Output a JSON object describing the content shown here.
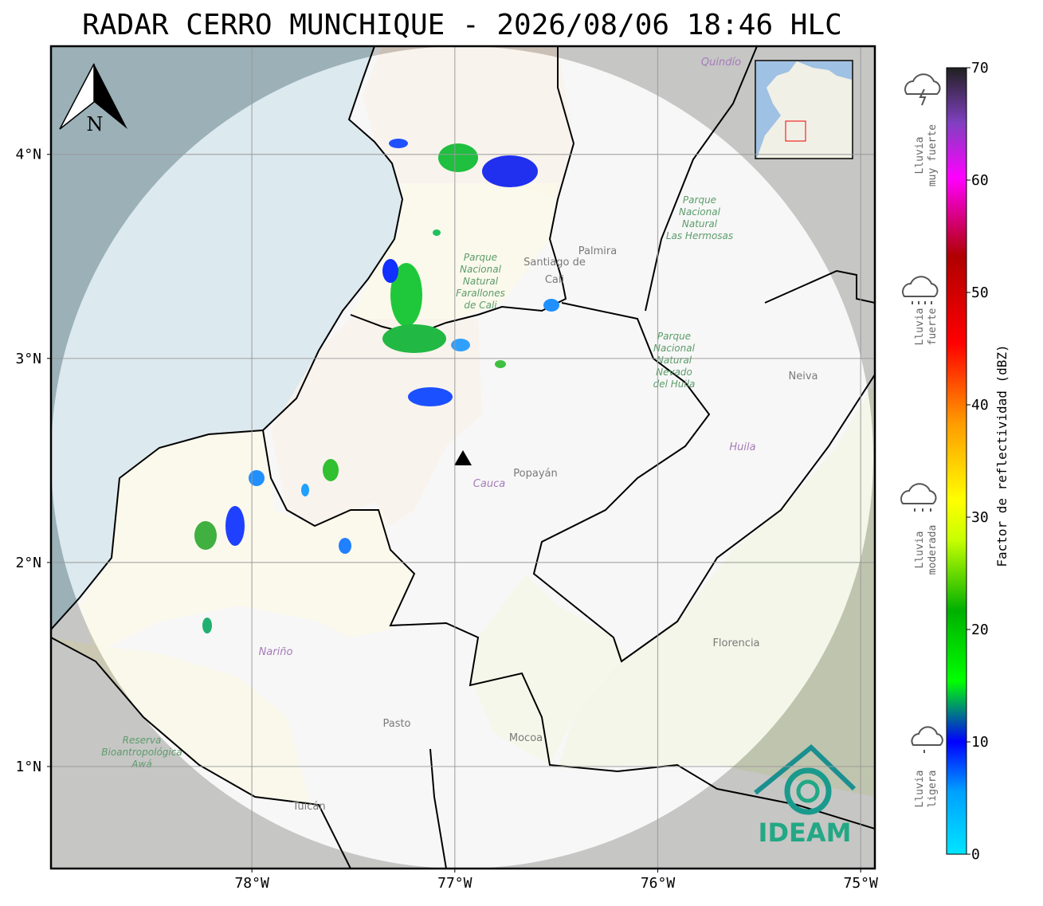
{
  "title": "RADAR CERRO MUNCHIQUE - 2026/08/06 18:46 HLC",
  "map": {
    "xlim": [
      -78.99,
      -74.93
    ],
    "ylim": [
      0.5,
      4.53
    ],
    "xticks": [
      {
        "value": -78,
        "label": "78°W"
      },
      {
        "value": -77,
        "label": "77°W"
      },
      {
        "value": -76,
        "label": "76°W"
      },
      {
        "value": -75,
        "label": "75°W"
      }
    ],
    "yticks": [
      {
        "value": 1,
        "label": "1°N"
      },
      {
        "value": 2,
        "label": "2°N"
      },
      {
        "value": 3,
        "label": "3°N"
      },
      {
        "value": 4,
        "label": "4°N"
      }
    ],
    "grid": true,
    "north_label": "N",
    "places": [
      "Santiago de",
      "Cali",
      "Palmira",
      "Popayán",
      "Cauca",
      "Huila",
      "Neiva",
      "Nariño",
      "Pasto",
      "Mocoa",
      "Florencia",
      "Tulcán",
      "Quindío"
    ],
    "parks": [
      [
        "Parque",
        "Nacional",
        "Natural",
        "Farallones",
        "de Cali"
      ],
      [
        "Parque",
        "Nacional",
        "Natural",
        "Las Hermosas"
      ],
      [
        "Parque",
        "Nacional",
        "Natural",
        "Nevado",
        "del Huila"
      ],
      [
        "Reserva",
        "Bioantropológica",
        "Awá"
      ]
    ]
  },
  "colorbar": {
    "label": "Factor de reflectividad (dBZ)",
    "lim": [
      0,
      70
    ],
    "ticks": [
      0,
      10,
      20,
      30,
      40,
      50,
      60,
      70
    ]
  },
  "rain_levels": [
    [
      "Lluvia",
      "muy fuerte"
    ],
    [
      "Lluvia",
      "fuerte"
    ],
    [
      "Lluvia",
      "moderada"
    ],
    [
      "Lluvia",
      "ligera"
    ]
  ],
  "logo": "IDEAM"
}
